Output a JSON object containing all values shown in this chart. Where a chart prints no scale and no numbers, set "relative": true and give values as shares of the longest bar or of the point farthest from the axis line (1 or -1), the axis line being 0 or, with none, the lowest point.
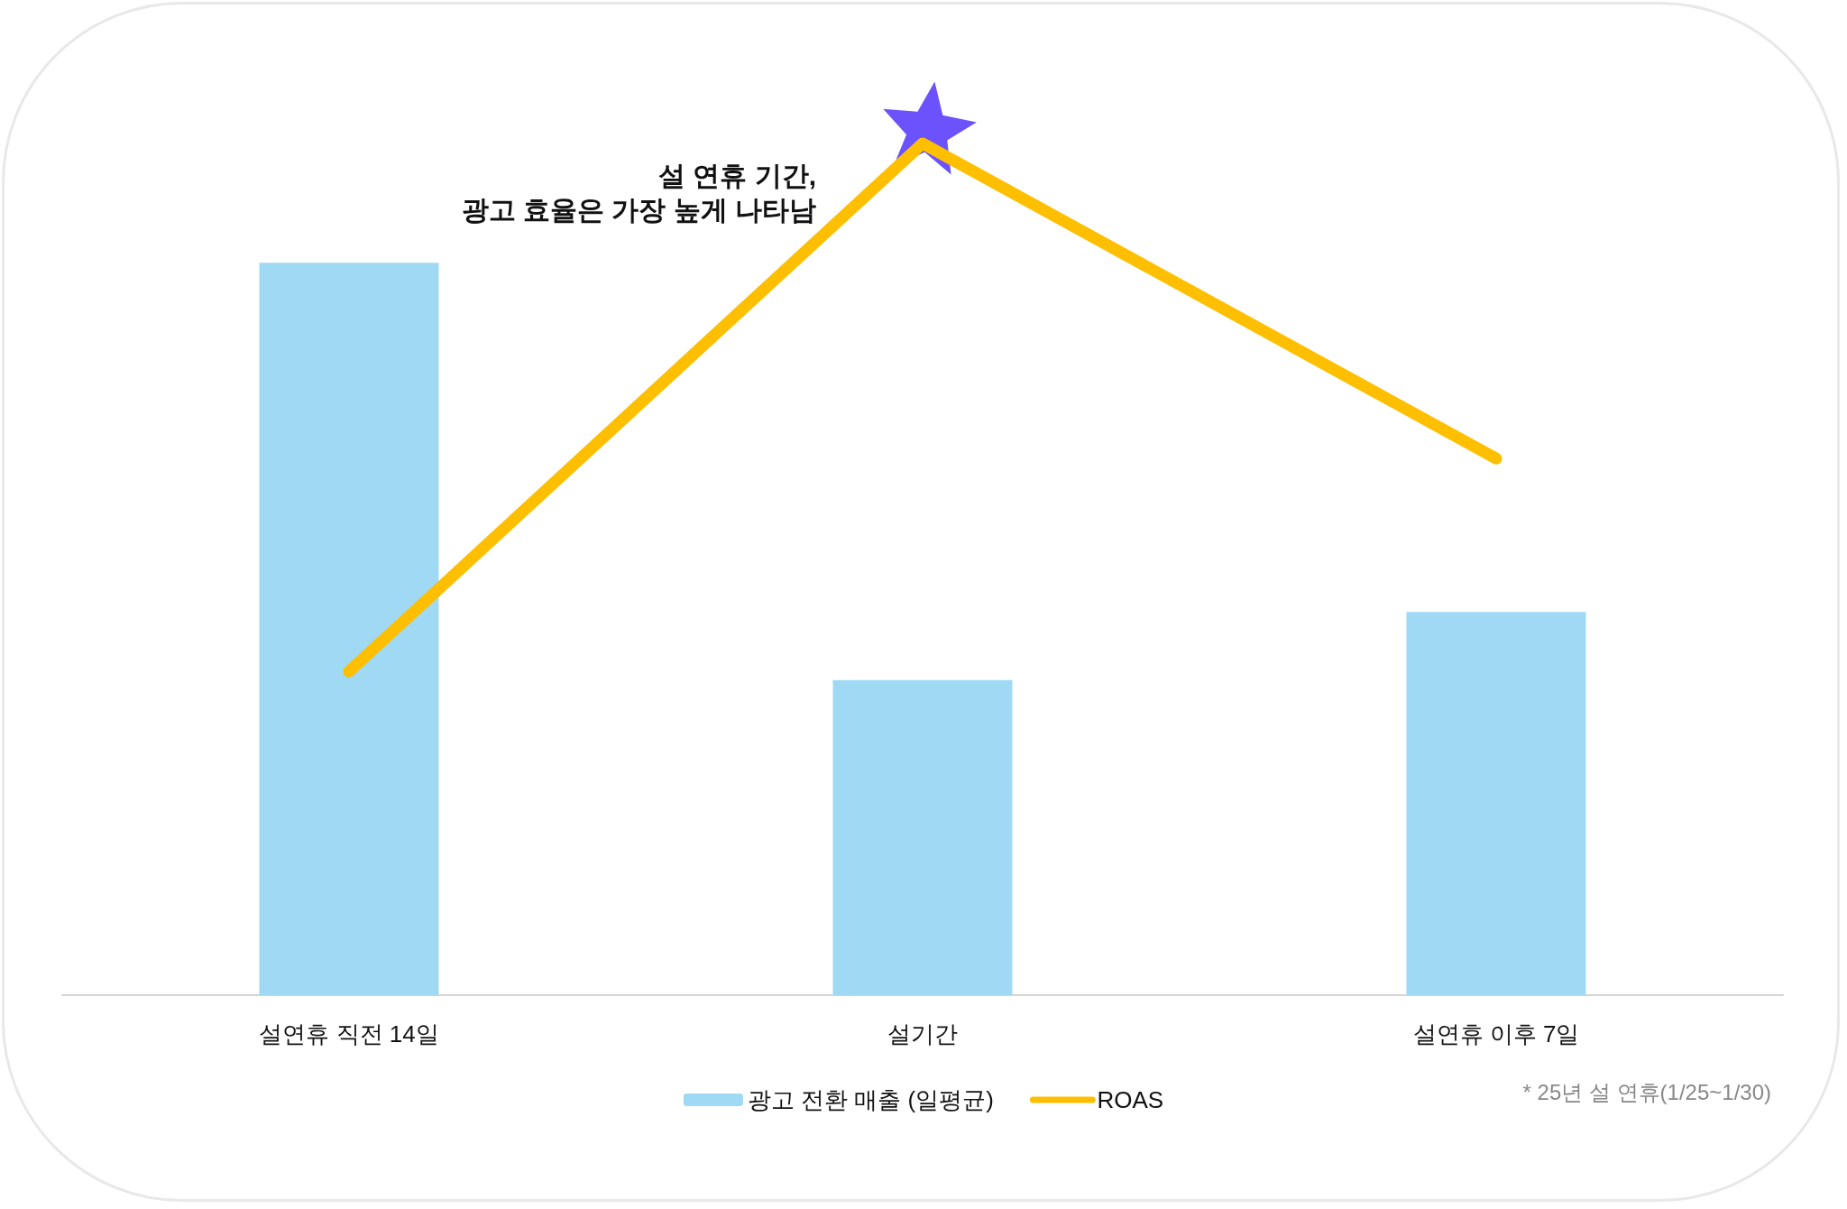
{
  "chart_data": {
    "type": "bar",
    "relative": true,
    "categories": [
      "설연휴 직전 14일",
      "설기간",
      "설연휴 이후 7일"
    ],
    "series": [
      {
        "name": "광고 전환 매출 (일평균)",
        "color": "#a0d9f3",
        "values": [
          0.86,
          0.37,
          0.45
        ]
      },
      {
        "name": "ROAS",
        "type": "line",
        "color": "#fdbf00",
        "values": [
          0.38,
          1,
          0.63
        ]
      }
    ],
    "annotations": [
      "설 연휴 기간,\n광고 효율은 가장 높게 나타남",
      "* 25년 설 연휴(1/25~1/30)"
    ],
    "legend": "bottom"
  }
}
